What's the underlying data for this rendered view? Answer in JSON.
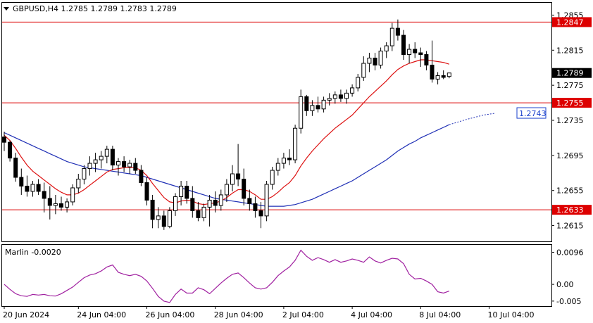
{
  "chart_data": {
    "type": "candlestick",
    "title": "GBPUSD,H4  1.2785 1.2789 1.2783 1.2789",
    "symbol": "GBPUSD,H4",
    "ohlc_header": "1.2785 1.2789 1.2783 1.2789",
    "price_axis": {
      "range": [
        1.2597,
        1.2869
      ],
      "ticks": [
        "1.2855",
        "1.2815",
        "1.2775",
        "1.2735",
        "1.2695",
        "1.2655",
        "1.2615"
      ]
    },
    "x_axis": {
      "labels": [
        {
          "text": "20 Jun 2024",
          "bar": 0
        },
        {
          "text": "24 Jun 04:00",
          "bar": 13
        },
        {
          "text": "26 Jun 04:00",
          "bar": 25
        },
        {
          "text": "28 Jun 04:00",
          "bar": 37
        },
        {
          "text": "2 Jul 04:00",
          "bar": 49
        },
        {
          "text": "4 Jul 04:00",
          "bar": 61
        },
        {
          "text": "8 Jul 04:00",
          "bar": 73
        },
        {
          "text": "10 Jul 04:00",
          "bar": 85
        }
      ]
    },
    "levels": [
      {
        "label": "1.2847",
        "value": 1.2847,
        "color": "#dd0000"
      },
      {
        "label": "1.2755",
        "value": 1.2755,
        "color": "#dd0000"
      },
      {
        "label": "1.2633",
        "value": 1.2633,
        "color": "#dd0000"
      }
    ],
    "current_price": {
      "label": "1.2789",
      "value": 1.2789
    },
    "forecast_label": {
      "label": "1.2743",
      "value": 1.2743,
      "color": "#1a3fcc"
    },
    "candles": [
      [
        1.2716,
        1.2722,
        1.27,
        1.271
      ],
      [
        1.271,
        1.2712,
        1.2688,
        1.2692
      ],
      [
        1.2692,
        1.2698,
        1.2665,
        1.267
      ],
      [
        1.267,
        1.268,
        1.265,
        1.266
      ],
      [
        1.266,
        1.2672,
        1.2648,
        1.2654
      ],
      [
        1.2654,
        1.2666,
        1.2648,
        1.2662
      ],
      [
        1.2662,
        1.2668,
        1.265,
        1.2654
      ],
      [
        1.2654,
        1.2664,
        1.263,
        1.2646
      ],
      [
        1.2646,
        1.266,
        1.2622,
        1.2638
      ],
      [
        1.2638,
        1.265,
        1.2628,
        1.264
      ],
      [
        1.264,
        1.2648,
        1.2632,
        1.2636
      ],
      [
        1.2636,
        1.2646,
        1.263,
        1.2642
      ],
      [
        1.2642,
        1.2662,
        1.2638,
        1.2658
      ],
      [
        1.2658,
        1.2674,
        1.2652,
        1.2668
      ],
      [
        1.2668,
        1.2684,
        1.2662,
        1.268
      ],
      [
        1.268,
        1.2694,
        1.2672,
        1.2686
      ],
      [
        1.2686,
        1.2698,
        1.2676,
        1.269
      ],
      [
        1.269,
        1.27,
        1.268,
        1.2694
      ],
      [
        1.2694,
        1.2706,
        1.2686,
        1.2702
      ],
      [
        1.2702,
        1.2706,
        1.2678,
        1.2684
      ],
      [
        1.2684,
        1.2692,
        1.2672,
        1.2688
      ],
      [
        1.2688,
        1.2694,
        1.2676,
        1.2682
      ],
      [
        1.2682,
        1.269,
        1.2674,
        1.2686
      ],
      [
        1.2686,
        1.2692,
        1.2674,
        1.2678
      ],
      [
        1.2678,
        1.2684,
        1.266,
        1.2664
      ],
      [
        1.2664,
        1.267,
        1.2638,
        1.2644
      ],
      [
        1.2644,
        1.265,
        1.2612,
        1.2622
      ],
      [
        1.2622,
        1.2636,
        1.2612,
        1.2626
      ],
      [
        1.2626,
        1.2632,
        1.261,
        1.2614
      ],
      [
        1.2614,
        1.2636,
        1.2612,
        1.2632
      ],
      [
        1.2632,
        1.2652,
        1.2626,
        1.2648
      ],
      [
        1.2648,
        1.2666,
        1.2638,
        1.266
      ],
      [
        1.266,
        1.2666,
        1.264,
        1.2646
      ],
      [
        1.2646,
        1.266,
        1.2624,
        1.2632
      ],
      [
        1.2632,
        1.2642,
        1.262,
        1.2624
      ],
      [
        1.2624,
        1.264,
        1.262,
        1.2636
      ],
      [
        1.2636,
        1.265,
        1.2614,
        1.2644
      ],
      [
        1.2644,
        1.2654,
        1.263,
        1.2638
      ],
      [
        1.2638,
        1.2656,
        1.2632,
        1.265
      ],
      [
        1.265,
        1.2668,
        1.2642,
        1.2662
      ],
      [
        1.2662,
        1.2684,
        1.2654,
        1.2674
      ],
      [
        1.2674,
        1.2708,
        1.266,
        1.2668
      ],
      [
        1.2668,
        1.268,
        1.2638,
        1.2646
      ],
      [
        1.2646,
        1.2656,
        1.2632,
        1.264
      ],
      [
        1.264,
        1.2648,
        1.2624,
        1.2632
      ],
      [
        1.2632,
        1.2642,
        1.2612,
        1.2626
      ],
      [
        1.2626,
        1.2666,
        1.262,
        1.2662
      ],
      [
        1.2662,
        1.2682,
        1.2656,
        1.2678
      ],
      [
        1.2678,
        1.2692,
        1.2672,
        1.2686
      ],
      [
        1.2686,
        1.2698,
        1.268,
        1.2692
      ],
      [
        1.2692,
        1.2702,
        1.2684,
        1.269
      ],
      [
        1.269,
        1.273,
        1.2686,
        1.2726
      ],
      [
        1.2726,
        1.277,
        1.272,
        1.2762
      ],
      [
        1.2762,
        1.2764,
        1.274,
        1.2746
      ],
      [
        1.2746,
        1.2758,
        1.274,
        1.2752
      ],
      [
        1.2752,
        1.2762,
        1.2744,
        1.2748
      ],
      [
        1.2748,
        1.2762,
        1.2744,
        1.2758
      ],
      [
        1.2758,
        1.2766,
        1.2752,
        1.276
      ],
      [
        1.276,
        1.2768,
        1.2754,
        1.2764
      ],
      [
        1.2764,
        1.277,
        1.2756,
        1.276
      ],
      [
        1.276,
        1.277,
        1.2754,
        1.2766
      ],
      [
        1.2766,
        1.2776,
        1.2762,
        1.2772
      ],
      [
        1.2772,
        1.2788,
        1.2768,
        1.2784
      ],
      [
        1.2784,
        1.2808,
        1.278,
        1.28
      ],
      [
        1.28,
        1.2812,
        1.279,
        1.2806
      ],
      [
        1.2806,
        1.2812,
        1.2792,
        1.2798
      ],
      [
        1.2798,
        1.2818,
        1.2794,
        1.2814
      ],
      [
        1.2814,
        1.2824,
        1.2806,
        1.282
      ],
      [
        1.282,
        1.2846,
        1.2814,
        1.284
      ],
      [
        1.284,
        1.285,
        1.2826,
        1.2832
      ],
      [
        1.2832,
        1.2838,
        1.2804,
        1.281
      ],
      [
        1.281,
        1.2822,
        1.28,
        1.2816
      ],
      [
        1.2816,
        1.2824,
        1.2806,
        1.2812
      ],
      [
        1.2812,
        1.2818,
        1.2796,
        1.281
      ],
      [
        1.281,
        1.2814,
        1.2792,
        1.2798
      ],
      [
        1.2798,
        1.2826,
        1.2778,
        1.2782
      ],
      [
        1.2782,
        1.279,
        1.2776,
        1.2786
      ],
      [
        1.2786,
        1.2792,
        1.2782,
        1.2784
      ],
      [
        1.2785,
        1.2789,
        1.2783,
        1.2789
      ]
    ],
    "ma_fast": [
      1.2718,
      1.2712,
      1.2703,
      1.2693,
      1.2684,
      1.2677,
      1.2672,
      1.2667,
      1.2662,
      1.2657,
      1.2653,
      1.265,
      1.265,
      1.2652,
      1.2656,
      1.2661,
      1.2666,
      1.2671,
      1.2676,
      1.2679,
      1.268,
      1.2681,
      1.2681,
      1.2681,
      1.2678,
      1.2672,
      1.2663,
      1.2655,
      1.2647,
      1.2642,
      1.2641,
      1.2643,
      1.2644,
      1.2643,
      1.264,
      1.2639,
      1.264,
      1.2641,
      1.2643,
      1.2647,
      1.2652,
      1.2656,
      1.2656,
      1.2654,
      1.265,
      1.2645,
      1.2645,
      1.2648,
      1.2653,
      1.2659,
      1.2664,
      1.2672,
      1.2683,
      1.2692,
      1.27,
      1.2707,
      1.2714,
      1.272,
      1.2726,
      1.2731,
      1.2736,
      1.2741,
      1.2748,
      1.2755,
      1.2762,
      1.2768,
      1.2774,
      1.278,
      1.2787,
      1.2793,
      1.2797,
      1.28,
      1.2802,
      1.2804,
      1.2804,
      1.2803,
      1.2802,
      1.2801,
      1.2799
    ],
    "ma_slow": [
      1.2721,
      1.2718,
      1.2715,
      1.2712,
      1.2709,
      1.2706,
      1.2703,
      1.27,
      1.2697,
      1.2694,
      1.2691,
      1.2688,
      1.2686,
      1.2684,
      1.2682,
      1.2681,
      1.268,
      1.2679,
      1.2678,
      1.2677,
      1.2676,
      1.2675,
      1.2674,
      1.2673,
      1.2672,
      1.267,
      1.2668,
      1.2666,
      1.2664,
      1.2662,
      1.266,
      1.2658,
      1.2656,
      1.2654,
      1.2652,
      1.265,
      1.2648,
      1.2646,
      1.2645,
      1.2644,
      1.2643,
      1.2642,
      1.2641,
      1.264,
      1.2639,
      1.2638,
      1.2637,
      1.2637,
      1.2637,
      1.2637,
      1.2638,
      1.2639,
      1.2641,
      1.2643,
      1.2645,
      1.2648,
      1.2651,
      1.2654,
      1.2657,
      1.266,
      1.2663,
      1.2666,
      1.267,
      1.2674,
      1.2678,
      1.2682,
      1.2686,
      1.269,
      1.2695,
      1.27,
      1.2704,
      1.2708,
      1.2711,
      1.2715,
      1.2718,
      1.2721,
      1.2724,
      1.2727,
      1.273
    ],
    "ma_slow_projection": [
      [
        78,
        1.273
      ],
      [
        81,
        1.2736
      ],
      [
        84,
        1.2741
      ],
      [
        86,
        1.2743
      ]
    ],
    "marlin": {
      "label": "Marlin -0.0020",
      "range": [
        -0.0065,
        0.0118
      ],
      "ticks": [
        "0.0096",
        "0.00",
        "-0.005"
      ],
      "values": [
        0.0,
        -0.0015,
        -0.0028,
        -0.0034,
        -0.0036,
        -0.003,
        -0.0032,
        -0.003,
        -0.0034,
        -0.0035,
        -0.0028,
        -0.0018,
        -0.0008,
        0.0006,
        0.002,
        0.0028,
        0.0032,
        0.004,
        0.0052,
        0.0058,
        0.0036,
        0.003,
        0.0026,
        0.003,
        0.0024,
        0.001,
        -0.0012,
        -0.0036,
        -0.005,
        -0.0054,
        -0.003,
        -0.0014,
        -0.0026,
        -0.0026,
        -0.001,
        -0.0016,
        -0.0028,
        -0.0012,
        0.0004,
        0.0018,
        0.003,
        0.0034,
        0.002,
        0.0004,
        -0.001,
        -0.0014,
        -0.001,
        0.0006,
        0.0026,
        0.004,
        0.0052,
        0.0072,
        0.0102,
        0.0084,
        0.0072,
        0.008,
        0.0074,
        0.0066,
        0.0074,
        0.0066,
        0.007,
        0.0076,
        0.0072,
        0.0066,
        0.0082,
        0.007,
        0.0064,
        0.0072,
        0.0078,
        0.0076,
        0.0062,
        0.003,
        0.0016,
        0.0018,
        0.001,
        0.0,
        -0.0022,
        -0.0026,
        -0.002
      ]
    }
  }
}
